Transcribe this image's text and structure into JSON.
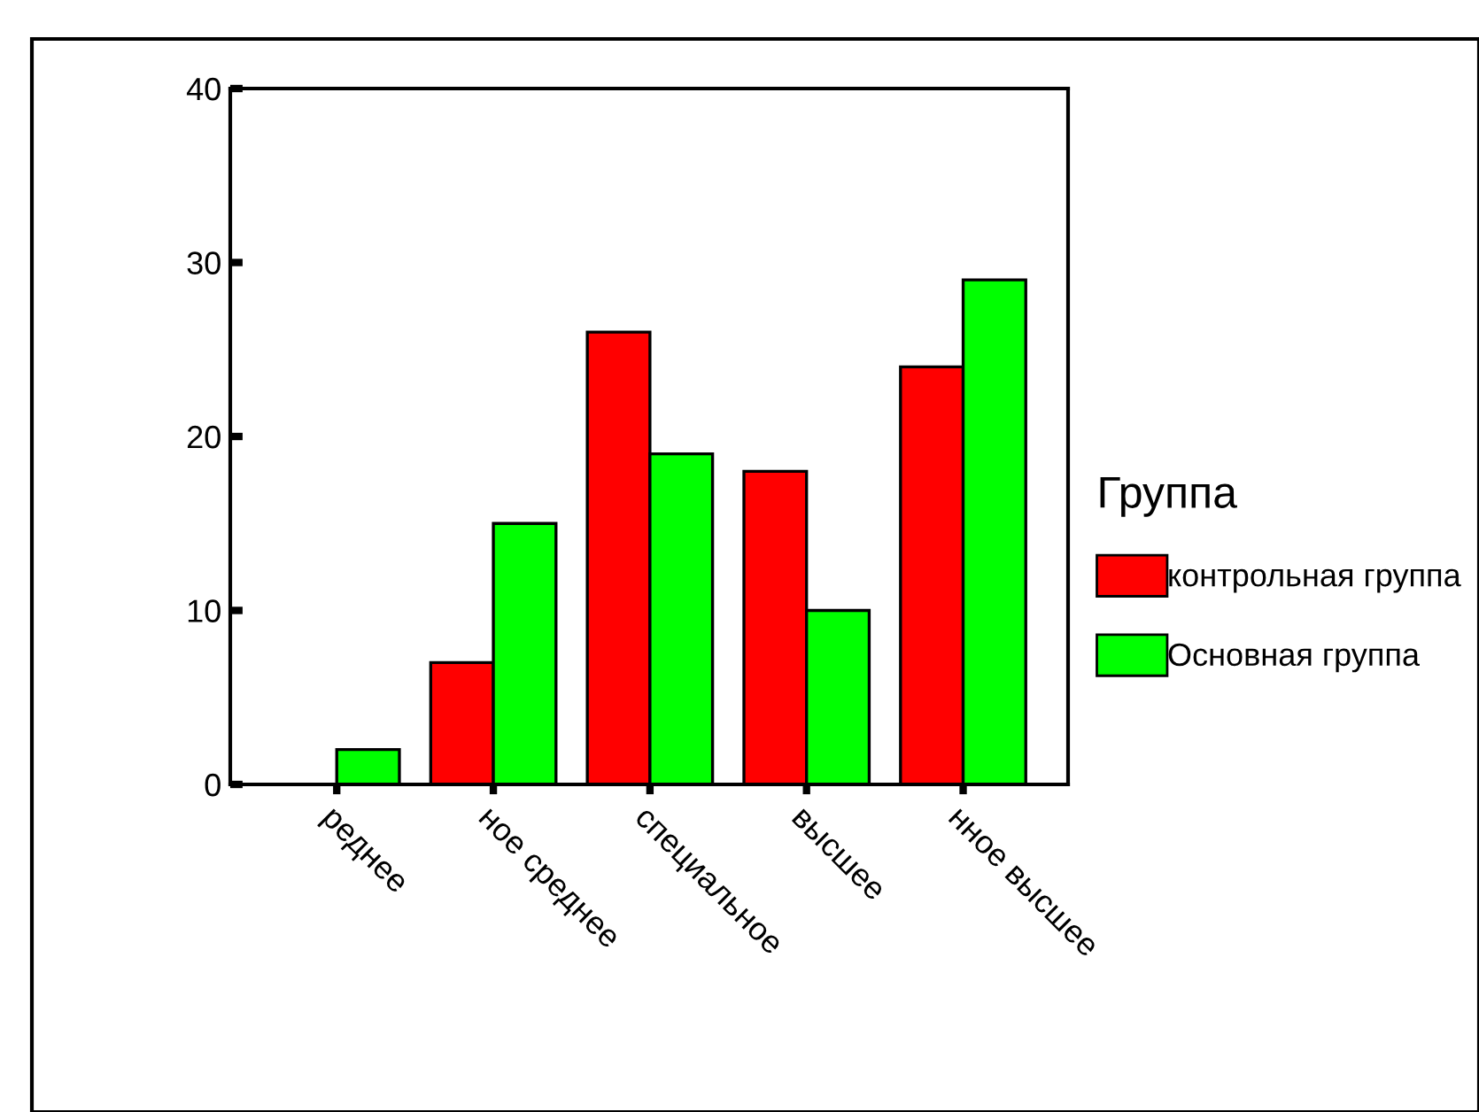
{
  "chart_data": {
    "type": "bar",
    "categories": [
      "реднее",
      "ное среднее",
      "специальное",
      "высшее",
      "нное высшее"
    ],
    "series": [
      {
        "name": "контрольная группа",
        "color": "#ff0000",
        "values": [
          null,
          7,
          26,
          18,
          24
        ]
      },
      {
        "name": "Основная группа",
        "color": "#00ff00",
        "values": [
          2,
          15,
          19,
          10,
          29
        ]
      }
    ],
    "legend_title": "Группа",
    "legend": "right",
    "ylim": [
      0,
      40
    ],
    "yticks": [
      0,
      10,
      20,
      30,
      40
    ],
    "grid": false
  }
}
